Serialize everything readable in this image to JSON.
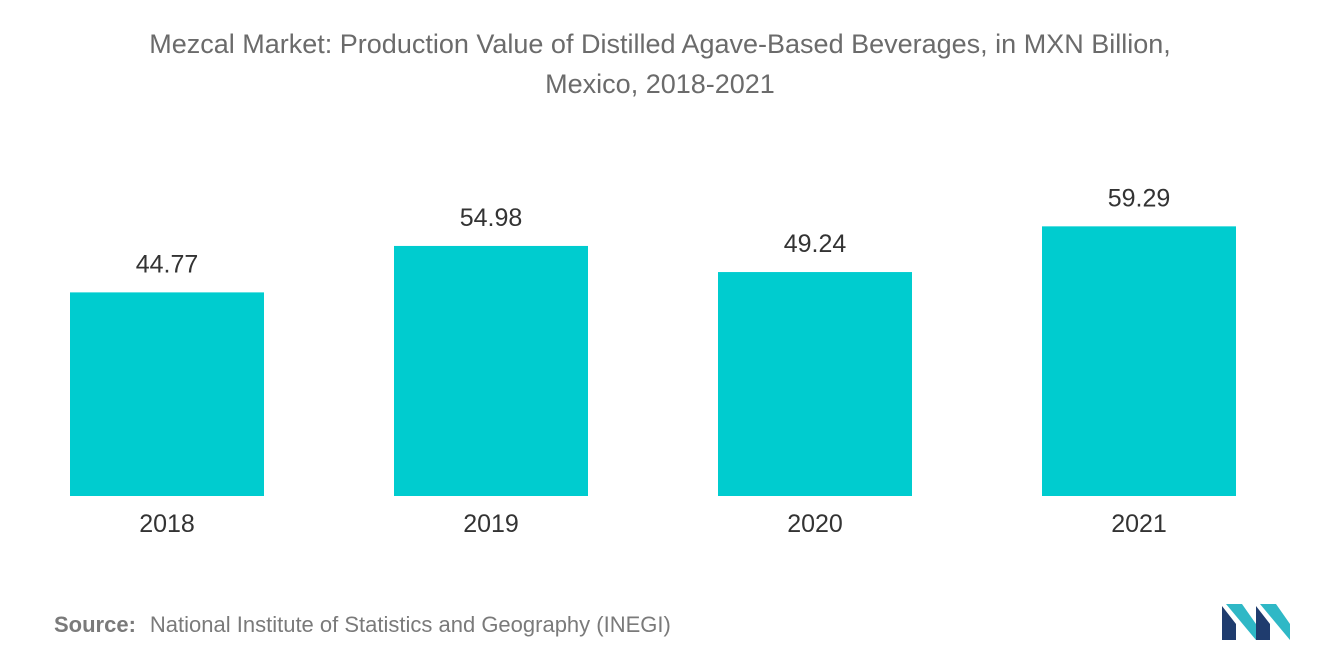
{
  "chart_data": {
    "type": "bar",
    "title_line1": "Mezcal Market: Production Value of Distilled Agave-Based Beverages, in MXN Billion,",
    "title_line2": "Mexico, 2018-2021",
    "categories": [
      "2018",
      "2019",
      "2020",
      "2021"
    ],
    "values": [
      44.77,
      54.98,
      49.24,
      59.29
    ],
    "value_labels": [
      "44.77",
      "54.98",
      "49.24",
      "59.29"
    ],
    "xlabel": "",
    "ylabel": "",
    "ylim": [
      0,
      65
    ],
    "grid": false,
    "legend": "none",
    "bar_color": "#00cccf"
  },
  "source": {
    "label": "Source:",
    "text": "National Institute of Statistics and Geography (INEGI)"
  },
  "logo": {
    "icon": "mordor-intelligence-logo-icon",
    "colors": [
      "#1f3c6e",
      "#2fb8c6"
    ]
  }
}
